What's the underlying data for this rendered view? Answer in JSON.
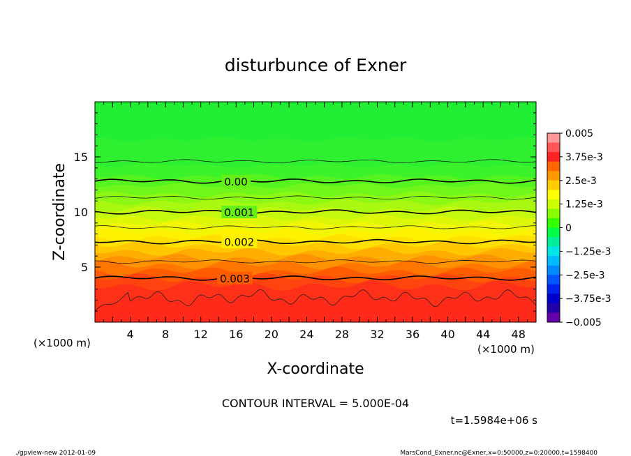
{
  "chart_data": {
    "type": "heatmap",
    "title": "disturbunce of Exner",
    "xlabel": "X-coordinate",
    "ylabel": "Z-coordinate",
    "x_unit": "(×1000 m)",
    "y_unit": "(×1000 m)",
    "xlim": [
      0,
      50
    ],
    "ylim": [
      0,
      20
    ],
    "x_ticks": [
      4,
      8,
      12,
      16,
      20,
      24,
      28,
      32,
      36,
      40,
      44,
      48
    ],
    "y_ticks": [
      5,
      10,
      15
    ],
    "colorbar": {
      "vmin": -0.005,
      "vmax": 0.005,
      "tick_labels": [
        "0.005",
        "3.75e-3",
        "2.5e-3",
        "1.25e-3",
        "0",
        "−1.25e-3",
        "−2.5e-3",
        "−3.75e-3",
        "−0.005"
      ],
      "tick_values": [
        0.005,
        0.00375,
        0.0025,
        0.00125,
        0,
        -0.00125,
        -0.0025,
        -0.00375,
        -0.005
      ],
      "colors": [
        "#ff9999",
        "#ff5555",
        "#ff2222",
        "#ff6600",
        "#ff9900",
        "#ffcc00",
        "#ffff00",
        "#ccff00",
        "#88ff00",
        "#33ff00",
        "#00ff44",
        "#00ee99",
        "#00e5e5",
        "#00bbff",
        "#0088ff",
        "#0055ff",
        "#0022ee",
        "#0000cc",
        "#2200aa",
        "#6600aa"
      ]
    },
    "contours": [
      {
        "label": "0.00",
        "z": 12.8
      },
      {
        "label": "0.001",
        "z": 10.0
      },
      {
        "label": "0.002",
        "z": 7.3
      },
      {
        "label": "0.003",
        "z": 4.0
      }
    ],
    "contour_interval_text": "CONTOUR INTERVAL = 5.000E-04",
    "time_text": "t=1.5984e+06 s",
    "footer_left": "./gpview-new  2012-01-09",
    "footer_right": "MarsCond_Exner.nc@Exner,x=0:50000,z=0:20000,t=1598400"
  }
}
